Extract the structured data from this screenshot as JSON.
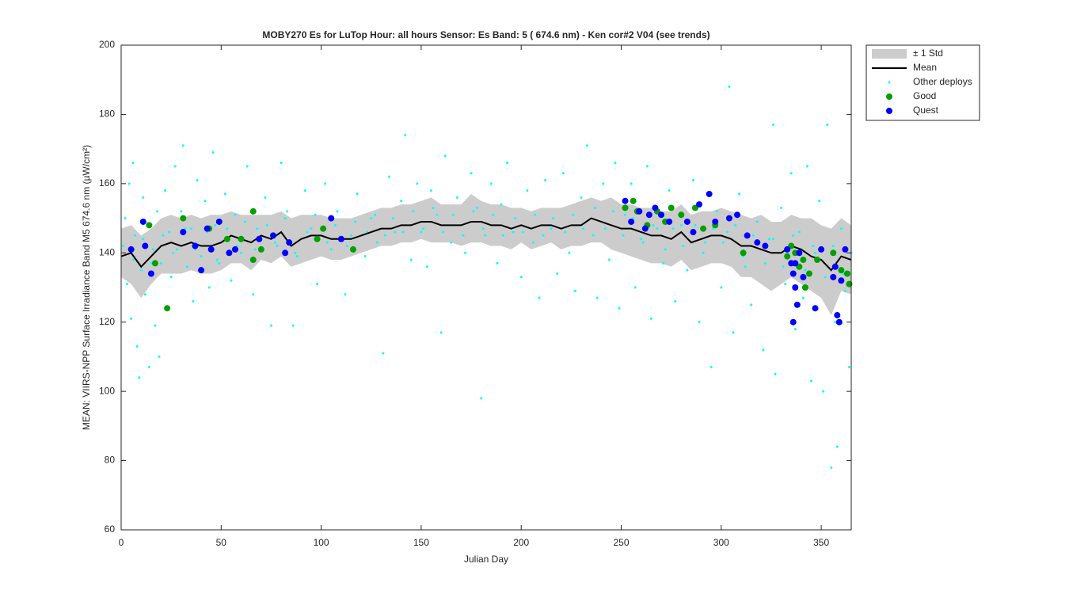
{
  "chart_data": {
    "type": "scatter",
    "title": "MOBY270   Es for LuTop  Hour: all hours  Sensor: Es Band: 5 ( 674.6 nm)  - Ken cor#2 V04 (see trends)",
    "xlabel": "Julian Day",
    "ylabel": "MEAN: VIIRS-NPP Surface Irradiance Band M5 674.6 nm (µW/cm²)",
    "xlim": [
      0,
      365
    ],
    "xticks": [
      0,
      50,
      100,
      150,
      200,
      250,
      300,
      350
    ],
    "ylim": [
      60,
      200
    ],
    "yticks": [
      60,
      80,
      100,
      120,
      140,
      160,
      180,
      200
    ],
    "grid": false,
    "legend_location": "northeastoutside",
    "series": [
      {
        "name": "± 1 Std",
        "type": "area",
        "color": "#cccccc",
        "x": [
          0,
          5,
          10,
          15,
          20,
          25,
          30,
          35,
          40,
          45,
          50,
          55,
          60,
          65,
          70,
          75,
          80,
          85,
          90,
          95,
          100,
          105,
          110,
          115,
          120,
          125,
          130,
          135,
          140,
          145,
          150,
          155,
          160,
          165,
          170,
          175,
          180,
          185,
          190,
          195,
          200,
          205,
          210,
          215,
          220,
          225,
          230,
          235,
          240,
          245,
          250,
          255,
          260,
          265,
          270,
          275,
          280,
          285,
          290,
          295,
          300,
          305,
          310,
          315,
          320,
          325,
          330,
          335,
          340,
          345,
          350,
          355,
          360,
          365
        ],
        "upper": [
          147,
          148,
          145,
          147,
          150,
          151,
          150,
          151,
          150,
          151,
          151,
          152,
          151,
          151,
          151,
          151,
          152,
          150,
          151,
          151,
          151,
          150,
          150,
          150,
          151,
          152,
          153,
          153,
          154,
          154,
          155,
          156,
          154,
          154,
          154,
          157,
          155,
          154,
          154,
          153,
          153,
          152,
          153,
          153,
          153,
          154,
          155,
          156,
          155,
          156,
          154,
          154,
          153,
          153,
          152,
          152,
          154,
          151,
          152,
          152,
          153,
          152,
          151,
          150,
          151,
          149,
          149,
          151,
          150,
          150,
          148,
          147,
          150,
          148
        ],
        "lower": [
          133,
          131,
          127,
          131,
          134,
          134,
          134,
          135,
          134,
          134,
          135,
          137,
          137,
          135,
          138,
          137,
          139,
          136,
          137,
          138,
          139,
          138,
          138,
          139,
          140,
          141,
          142,
          142,
          143,
          143,
          144,
          143,
          143,
          143,
          142,
          143,
          143,
          142,
          142,
          141,
          143,
          141,
          142,
          143,
          141,
          142,
          142,
          143,
          143,
          141,
          140,
          139,
          138,
          137,
          137,
          136,
          138,
          135,
          136,
          137,
          137,
          136,
          133,
          133,
          131,
          129,
          131,
          133,
          131,
          129,
          127,
          122,
          129,
          128
        ]
      },
      {
        "name": "Mean",
        "type": "line",
        "color": "#000000",
        "x": [
          0,
          5,
          10,
          15,
          20,
          25,
          30,
          35,
          40,
          45,
          50,
          55,
          60,
          65,
          70,
          75,
          80,
          85,
          90,
          95,
          100,
          105,
          110,
          115,
          120,
          125,
          130,
          135,
          140,
          145,
          150,
          155,
          160,
          165,
          170,
          175,
          180,
          185,
          190,
          195,
          200,
          205,
          210,
          215,
          220,
          225,
          230,
          235,
          240,
          245,
          250,
          255,
          260,
          265,
          270,
          275,
          280,
          285,
          290,
          295,
          300,
          305,
          310,
          315,
          320,
          325,
          330,
          335,
          340,
          345,
          350,
          355,
          360,
          365
        ],
        "values": [
          139,
          140,
          136,
          139,
          142,
          143,
          142,
          143,
          142,
          142,
          143,
          145,
          144,
          143,
          145,
          144,
          146,
          142,
          144,
          145,
          145,
          144,
          144,
          144,
          145,
          146,
          147,
          147,
          148,
          148,
          149,
          149,
          148,
          148,
          148,
          149,
          149,
          148,
          148,
          147,
          148,
          147,
          148,
          148,
          147,
          148,
          148,
          150,
          149,
          148,
          147,
          147,
          146,
          145,
          145,
          144,
          146,
          143,
          144,
          145,
          145,
          144,
          142,
          142,
          141,
          140,
          140,
          142,
          141,
          139,
          138,
          135,
          139,
          138
        ]
      },
      {
        "name": "Other deploys",
        "type": "scatter",
        "color": "#00ffff",
        "marker_size": 1.5,
        "x": [
          2,
          3,
          4,
          5,
          6,
          7,
          8,
          9,
          10,
          11,
          12,
          13,
          14,
          16,
          17,
          18,
          19,
          20,
          22,
          24,
          25,
          27,
          28,
          30,
          31,
          33,
          35,
          36,
          38,
          40,
          42,
          44,
          46,
          47,
          49,
          52,
          55,
          57,
          60,
          63,
          66,
          68,
          72,
          75,
          78,
          80,
          83,
          86,
          88,
          92,
          95,
          98,
          102,
          105,
          108,
          112,
          115,
          118,
          122,
          125,
          128,
          131,
          134,
          137,
          140,
          142,
          145,
          148,
          150,
          153,
          155,
          158,
          160,
          162,
          165,
          168,
          172,
          175,
          178,
          180,
          182,
          185,
          188,
          190,
          193,
          196,
          200,
          203,
          206,
          209,
          212,
          215,
          218,
          221,
          224,
          227,
          230,
          233,
          236,
          238,
          241,
          244,
          247,
          249,
          252,
          255,
          257,
          260,
          263,
          265,
          268,
          271,
          274,
          277,
          280,
          283,
          286,
          289,
          292,
          295,
          298,
          300,
          303,
          306,
          309,
          312,
          315,
          318,
          321,
          324,
          327,
          330,
          332,
          335,
          337,
          339,
          341,
          343,
          345,
          347,
          349,
          351,
          353,
          355,
          357,
          358,
          360,
          362,
          364,
          304,
          326,
          1,
          6,
          11,
          15,
          21,
          26,
          32,
          37,
          43,
          48,
          53,
          58,
          62,
          67,
          73,
          77,
          82,
          87,
          93,
          97,
          103,
          107,
          113,
          117,
          123,
          127,
          132,
          136,
          141,
          146,
          151,
          156,
          161,
          166,
          171,
          176,
          181,
          186,
          191,
          197,
          201,
          207,
          211,
          216,
          222,
          226,
          231,
          237,
          242,
          246,
          251,
          256,
          261,
          266,
          272,
          276,
          281,
          287,
          291,
          296,
          301,
          307,
          311,
          316,
          322,
          326,
          331,
          336,
          342,
          346,
          352,
          356,
          361,
          365
        ],
        "values": [
          150,
          131,
          160,
          121,
          166,
          145,
          113,
          104,
          135,
          156,
          128,
          148,
          107,
          141,
          119,
          152,
          110,
          137,
          158,
          146,
          133,
          165,
          141,
          152,
          171,
          136,
          147,
          126,
          161,
          139,
          155,
          130,
          169,
          148,
          137,
          157,
          132,
          151,
          140,
          165,
          128,
          147,
          156,
          119,
          142,
          166,
          152,
          119,
          139,
          158,
          147,
          131,
          160,
          141,
          152,
          128,
          145,
          157,
          139,
          150,
          143,
          111,
          162,
          146,
          155,
          174,
          138,
          160,
          146,
          136,
          158,
          151,
          117,
          168,
          143,
          156,
          140,
          163,
          153,
          98,
          145,
          160,
          137,
          154,
          166,
          146,
          133,
          158,
          143,
          127,
          161,
          147,
          134,
          163,
          140,
          129,
          156,
          171,
          145,
          127,
          160,
          138,
          166,
          124,
          151,
          160,
          130,
          144,
          165,
          121,
          147,
          137,
          158,
          126,
          148,
          135,
          161,
          120,
          143,
          107,
          152,
          130,
          146,
          117,
          157,
          136,
          125,
          149,
          112,
          144,
          105,
          153,
          131,
          163,
          118,
          146,
          127,
          165,
          103,
          140,
          155,
          100,
          177,
          78,
          120,
          84,
          147,
          129,
          107,
          188,
          177,
          142,
          138,
          144,
          137,
          145,
          140,
          147,
          141,
          146,
          138,
          147,
          142,
          149,
          141,
          148,
          143,
          150,
          140,
          146,
          151,
          143,
          148,
          142,
          149,
          146,
          151,
          145,
          150,
          146,
          152,
          147,
          153,
          146,
          151,
          145,
          152,
          147,
          151,
          145,
          150,
          146,
          151,
          145,
          150,
          146,
          151,
          147,
          153,
          147,
          152,
          145,
          150,
          143,
          148,
          141,
          147,
          142,
          148,
          140,
          147,
          143,
          148,
          139,
          145,
          137,
          144,
          136,
          145,
          135,
          142,
          133,
          142,
          134,
          140
        ]
      },
      {
        "name": "Good",
        "type": "scatter",
        "color": "#00a000",
        "marker_size": 4,
        "x": [
          14,
          17,
          23,
          31,
          44,
          53,
          60,
          66,
          66,
          70,
          98,
          101,
          116,
          252,
          256,
          258,
          263,
          268,
          272,
          275,
          280,
          287,
          291,
          297,
          311,
          333,
          335,
          337,
          339,
          341,
          342,
          344,
          348,
          356,
          360,
          363,
          364
        ],
        "values": [
          148,
          137,
          124,
          150,
          147,
          144,
          144,
          138,
          152,
          141,
          144,
          147,
          141,
          153,
          155,
          152,
          148,
          152,
          149,
          153,
          151,
          153,
          147,
          148,
          140,
          139,
          142,
          140,
          136,
          138,
          130,
          134,
          138,
          140,
          135,
          134,
          131
        ]
      },
      {
        "name": "Quest",
        "type": "scatter",
        "color": "#0000ff",
        "marker_size": 4,
        "x": [
          5,
          11,
          12,
          15,
          31,
          37,
          40,
          43,
          45,
          49,
          54,
          57,
          69,
          76,
          82,
          84,
          105,
          110,
          252,
          255,
          259,
          262,
          264,
          267,
          270,
          274,
          283,
          286,
          289,
          294,
          297,
          304,
          308,
          313,
          318,
          322,
          333,
          335,
          336,
          337,
          338,
          339,
          341,
          347,
          350,
          356,
          357,
          358,
          359,
          360,
          362,
          336,
          337
        ],
        "values": [
          141,
          149,
          142,
          134,
          146,
          142,
          135,
          147,
          141,
          149,
          140,
          141,
          144,
          145,
          140,
          143,
          150,
          144,
          155,
          149,
          152,
          147,
          151,
          153,
          151,
          149,
          149,
          146,
          154,
          157,
          149,
          150,
          151,
          145,
          143,
          142,
          141,
          137,
          134,
          137,
          125,
          140,
          133,
          124,
          141,
          133,
          136,
          122,
          120,
          132,
          141,
          120,
          130
        ]
      }
    ]
  }
}
